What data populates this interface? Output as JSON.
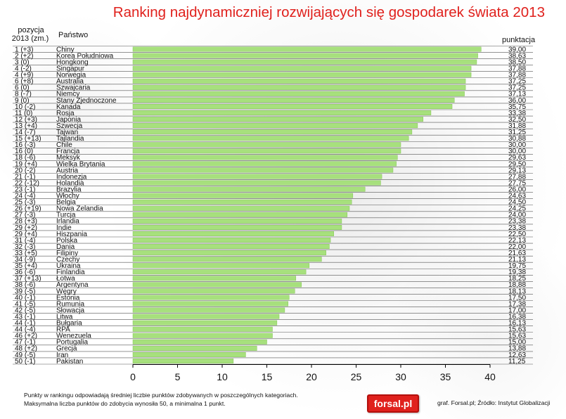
{
  "title": "Ranking najdynamiczniej rozwijających się gospodarek świata 2013",
  "headers": {
    "position_line1": "pozycja",
    "position_line2": "2013 (zm.)",
    "country": "Państwo",
    "score": "punktacja"
  },
  "footnote_line1": "Punkty w rankingu odpowiadają średniej liczbie punktów zdobywanych w poszczególnych kategoriach.",
  "footnote_line2": "Maksymalna liczba punktów do zdobycia wynosiła 50, a minimalna 1 punkt.",
  "logo": "fοrsal.pl",
  "credit": "graf. Forsal.pl; Źródło: Instytut Globalizacji",
  "colors": {
    "title": "#e0211d",
    "bar": "#a7e07d",
    "bar_edge": "#84c656"
  },
  "chart_data": {
    "type": "bar",
    "orientation": "horizontal",
    "xlim": [
      0,
      40
    ],
    "xticks": [
      "0",
      "5",
      "10",
      "15",
      "20",
      "25",
      "30",
      "35",
      "40"
    ],
    "rows": [
      {
        "pos": "1 (+3)",
        "country": "Chiny",
        "score": "39,00",
        "value": 39.0
      },
      {
        "pos": "2 (+2)",
        "country": "Korea Południowa",
        "score": "38,63",
        "value": 38.63
      },
      {
        "pos": "3 (0)",
        "country": "Hongkong",
        "score": "38,50",
        "value": 38.5
      },
      {
        "pos": "4 (-2)",
        "country": "Singapur",
        "score": "37,88",
        "value": 37.88
      },
      {
        "pos": "4 (+9)",
        "country": "Norwegia",
        "score": "37,88",
        "value": 37.88
      },
      {
        "pos": "6 (+8)",
        "country": "Australia",
        "score": "37,25",
        "value": 37.25
      },
      {
        "pos": "6 (0)",
        "country": "Szwajcaria",
        "score": "37,25",
        "value": 37.25
      },
      {
        "pos": "8 (-7)",
        "country": "Niemcy",
        "score": "37,13",
        "value": 37.13
      },
      {
        "pos": "9 (0)",
        "country": "Stany Zjednoczone",
        "score": "36,00",
        "value": 36.0
      },
      {
        "pos": "10 (-2)",
        "country": "Kanada",
        "score": "35,75",
        "value": 35.75
      },
      {
        "pos": "11 (0)",
        "country": "Rosja",
        "score": "33,38",
        "value": 33.38
      },
      {
        "pos": "12 (+3)",
        "country": "Japonia",
        "score": "32,50",
        "value": 32.5
      },
      {
        "pos": "13 (+4)",
        "country": "Szwecja",
        "score": "31,88",
        "value": 31.88
      },
      {
        "pos": "14 (-7)",
        "country": "Tajwan",
        "score": "31,25",
        "value": 31.25
      },
      {
        "pos": "15 (+13)",
        "country": "Tajlandia",
        "score": "30,88",
        "value": 30.88
      },
      {
        "pos": "16 (-3)",
        "country": "Chile",
        "score": "30,00",
        "value": 30.0
      },
      {
        "pos": "16 (0)",
        "country": "Francja",
        "score": "30,00",
        "value": 30.0
      },
      {
        "pos": "18 (-6)",
        "country": "Meksyk",
        "score": "29,63",
        "value": 29.63
      },
      {
        "pos": "19 (+4)",
        "country": "Wielka Brytania",
        "score": "29,50",
        "value": 29.5
      },
      {
        "pos": "20 (-2)",
        "country": "Austria",
        "score": "29,13",
        "value": 29.13
      },
      {
        "pos": "21 (-1)",
        "country": "Indonezja",
        "score": "27,88",
        "value": 27.88
      },
      {
        "pos": "22 (-12)",
        "country": "Holandia",
        "score": "27,75",
        "value": 27.75
      },
      {
        "pos": "23 (-1)",
        "country": "Brazylia",
        "score": "26,00",
        "value": 26.0
      },
      {
        "pos": "24 (-4)",
        "country": "Włochy",
        "score": "24,63",
        "value": 24.63
      },
      {
        "pos": "25 (-3)",
        "country": "Belgia",
        "score": "24,50",
        "value": 24.5
      },
      {
        "pos": "26 (+19)",
        "country": "Nowa Zelandia",
        "score": "24,25",
        "value": 24.25
      },
      {
        "pos": "27 (-3)",
        "country": "Turcja",
        "score": "24,00",
        "value": 24.0
      },
      {
        "pos": "28 (+3)",
        "country": "Irlandia",
        "score": "23,38",
        "value": 23.38
      },
      {
        "pos": "29 (+2)",
        "country": "Indie",
        "score": "23,38",
        "value": 23.38
      },
      {
        "pos": "29 (+4)",
        "country": "Hiszpania",
        "score": "22,50",
        "value": 22.5
      },
      {
        "pos": "31 (-4)",
        "country": "Polska",
        "score": "22,13",
        "value": 22.13
      },
      {
        "pos": "32 (-3)",
        "country": "Dania",
        "score": "22,00",
        "value": 22.0
      },
      {
        "pos": "33 (+5)",
        "country": "Filipiny",
        "score": "21,63",
        "value": 21.63
      },
      {
        "pos": "34 (-9)",
        "country": "Czechy",
        "score": "21,13",
        "value": 21.13
      },
      {
        "pos": "35 (+4)",
        "country": "Ukraina",
        "score": "19,75",
        "value": 19.75
      },
      {
        "pos": "36 (-6)",
        "country": "Finlandia",
        "score": "19,38",
        "value": 19.38
      },
      {
        "pos": "37 (+13)",
        "country": "Łotwa",
        "score": "18,25",
        "value": 18.25
      },
      {
        "pos": "38 (-6)",
        "country": "Argentyna",
        "score": "18,88",
        "value": 18.88
      },
      {
        "pos": "39 (-5)",
        "country": "Węgry",
        "score": "18,13",
        "value": 18.13
      },
      {
        "pos": "40 (-1)",
        "country": "Estonia",
        "score": "17,50",
        "value": 17.5
      },
      {
        "pos": "41 (-5)",
        "country": "Rumunia",
        "score": "17,38",
        "value": 17.38
      },
      {
        "pos": "42 (-5)",
        "country": "Słowacja",
        "score": "17,00",
        "value": 17.0
      },
      {
        "pos": "43 (-1)",
        "country": "Litwa",
        "score": "16,38",
        "value": 16.38
      },
      {
        "pos": "44 (-1)",
        "country": "Bułgaria",
        "score": "16,13",
        "value": 16.13
      },
      {
        "pos": "44 (-4)",
        "country": "RPA",
        "score": "15,63",
        "value": 15.63
      },
      {
        "pos": "46 (+2)",
        "country": "Wenezuela",
        "score": "15,63",
        "value": 15.63
      },
      {
        "pos": "47 (-1)",
        "country": "Portugalia",
        "score": "15,00",
        "value": 15.0
      },
      {
        "pos": "48 (+2)",
        "country": "Grecja",
        "score": "13,88",
        "value": 13.88
      },
      {
        "pos": "49 (-5)",
        "country": "Iran",
        "score": "12,63",
        "value": 12.63
      },
      {
        "pos": "50 (-1)",
        "country": "Pakistan",
        "score": "11,25",
        "value": 11.25
      }
    ]
  }
}
